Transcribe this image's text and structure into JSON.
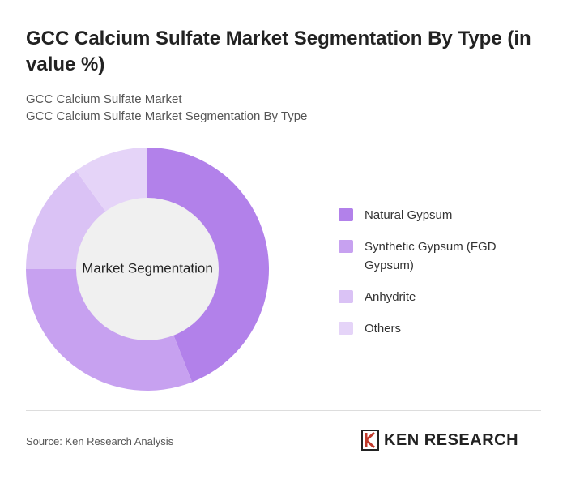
{
  "chart_data": {
    "type": "donut",
    "title": "GCC Calcium Sulfate Market Segmentation By Type (in value %)",
    "subtitles": [
      "GCC Calcium Sulfate Market",
      "GCC Calcium Sulfate Market Segmentation By Type"
    ],
    "center_label": "Market Segmentation",
    "categories": [
      "Natural Gypsum",
      "Synthetic Gypsum (FGD Gypsum)",
      "Anhydrite",
      "Others"
    ],
    "values": [
      44,
      31,
      15,
      10
    ],
    "colors": [
      "#b281ea",
      "#c7a1f0",
      "#dac2f5",
      "#e5d4f8"
    ],
    "legend": "right",
    "source": "Source: Ken Research Analysis",
    "logo": "KEN RESEARCH"
  }
}
